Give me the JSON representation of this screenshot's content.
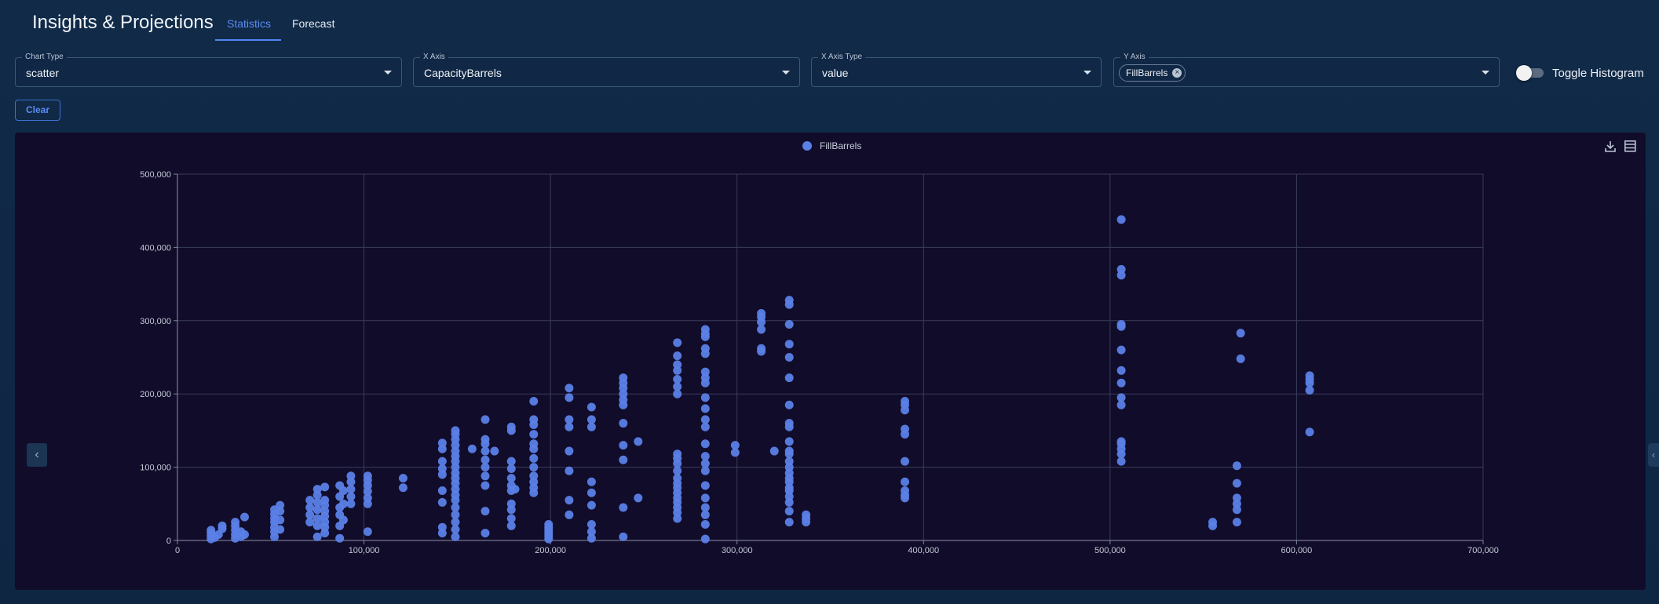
{
  "header": {
    "title": "Insights & Projections",
    "tabs": [
      {
        "label": "Statistics",
        "active": true
      },
      {
        "label": "Forecast",
        "active": false
      }
    ]
  },
  "controls": {
    "chart_type": {
      "legend": "Chart Type",
      "value": "scatter"
    },
    "x_axis": {
      "legend": "X Axis",
      "value": "CapacityBarrels"
    },
    "x_axis_type": {
      "legend": "X Axis Type",
      "value": "value"
    },
    "y_axis": {
      "legend": "Y Axis",
      "chips": [
        "FillBarrels"
      ]
    },
    "histogram_toggle": {
      "label": "Toggle Histogram",
      "on": false
    },
    "clear_label": "Clear"
  },
  "icons": {
    "download": "download-icon",
    "data_view": "data-view-icon",
    "chip_remove": "close-circle-icon",
    "nav_left": "chevron-left-icon",
    "nav_right": "chevron-right-icon"
  },
  "colors": {
    "accent": "#4f86f7",
    "point": "#5b7fe6",
    "chart_bg": "#110c2a"
  },
  "chart_data": {
    "type": "scatter",
    "xlim": [
      0,
      700000
    ],
    "ylim": [
      0,
      500000
    ],
    "x_ticks": [
      0,
      100000,
      200000,
      300000,
      400000,
      500000,
      600000,
      700000
    ],
    "y_ticks": [
      0,
      100000,
      200000,
      300000,
      400000,
      500000
    ],
    "x_tick_labels": [
      "0",
      "100,000",
      "200,000",
      "300,000",
      "400,000",
      "500,000",
      "600,000",
      "700,000"
    ],
    "y_tick_labels": [
      "0",
      "100,000",
      "200,000",
      "300,000",
      "400,000",
      "500,000"
    ],
    "grid": true,
    "legend_position": "top-center",
    "series": [
      {
        "name": "FillBarrels",
        "points": [
          [
            18000,
            2000
          ],
          [
            18000,
            6000
          ],
          [
            18000,
            10000
          ],
          [
            18000,
            14000
          ],
          [
            20000,
            4000
          ],
          [
            22000,
            8000
          ],
          [
            24000,
            16000
          ],
          [
            24000,
            20000
          ],
          [
            31000,
            3000
          ],
          [
            31000,
            8000
          ],
          [
            31000,
            14000
          ],
          [
            31000,
            20000
          ],
          [
            31000,
            25000
          ],
          [
            34000,
            5000
          ],
          [
            34000,
            12000
          ],
          [
            36000,
            32000
          ],
          [
            36000,
            8000
          ],
          [
            52000,
            5000
          ],
          [
            52000,
            12000
          ],
          [
            52000,
            18000
          ],
          [
            52000,
            25000
          ],
          [
            52000,
            30000
          ],
          [
            52000,
            36000
          ],
          [
            52000,
            42000
          ],
          [
            55000,
            15000
          ],
          [
            55000,
            28000
          ],
          [
            55000,
            40000
          ],
          [
            55000,
            48000
          ],
          [
            71000,
            25000
          ],
          [
            71000,
            35000
          ],
          [
            71000,
            45000
          ],
          [
            71000,
            55000
          ],
          [
            75000,
            5000
          ],
          [
            75000,
            20000
          ],
          [
            75000,
            30000
          ],
          [
            75000,
            42000
          ],
          [
            75000,
            52000
          ],
          [
            75000,
            62000
          ],
          [
            75000,
            70000
          ],
          [
            79000,
            10000
          ],
          [
            79000,
            18000
          ],
          [
            79000,
            25000
          ],
          [
            79000,
            33000
          ],
          [
            79000,
            40000
          ],
          [
            79000,
            48000
          ],
          [
            79000,
            55000
          ],
          [
            79000,
            73000
          ],
          [
            87000,
            3000
          ],
          [
            87000,
            20000
          ],
          [
            87000,
            35000
          ],
          [
            87000,
            45000
          ],
          [
            87000,
            60000
          ],
          [
            87000,
            75000
          ],
          [
            89000,
            28000
          ],
          [
            89000,
            50000
          ],
          [
            89000,
            68000
          ],
          [
            93000,
            50000
          ],
          [
            93000,
            60000
          ],
          [
            93000,
            70000
          ],
          [
            93000,
            80000
          ],
          [
            93000,
            88000
          ],
          [
            102000,
            12000
          ],
          [
            102000,
            50000
          ],
          [
            102000,
            58000
          ],
          [
            102000,
            67000
          ],
          [
            102000,
            75000
          ],
          [
            102000,
            82000
          ],
          [
            102000,
            88000
          ],
          [
            121000,
            72000
          ],
          [
            121000,
            85000
          ],
          [
            142000,
            10000
          ],
          [
            142000,
            18000
          ],
          [
            142000,
            52000
          ],
          [
            142000,
            68000
          ],
          [
            142000,
            90000
          ],
          [
            142000,
            98000
          ],
          [
            142000,
            108000
          ],
          [
            142000,
            125000
          ],
          [
            142000,
            133000
          ],
          [
            149000,
            5000
          ],
          [
            149000,
            15000
          ],
          [
            149000,
            25000
          ],
          [
            149000,
            35000
          ],
          [
            149000,
            45000
          ],
          [
            149000,
            55000
          ],
          [
            149000,
            62000
          ],
          [
            149000,
            70000
          ],
          [
            149000,
            78000
          ],
          [
            149000,
            85000
          ],
          [
            149000,
            92000
          ],
          [
            149000,
            100000
          ],
          [
            149000,
            108000
          ],
          [
            149000,
            115000
          ],
          [
            149000,
            122000
          ],
          [
            149000,
            130000
          ],
          [
            149000,
            138000
          ],
          [
            149000,
            145000
          ],
          [
            149000,
            150000
          ],
          [
            158000,
            125000
          ],
          [
            165000,
            10000
          ],
          [
            165000,
            40000
          ],
          [
            165000,
            75000
          ],
          [
            165000,
            88000
          ],
          [
            165000,
            100000
          ],
          [
            165000,
            110000
          ],
          [
            165000,
            122000
          ],
          [
            165000,
            132000
          ],
          [
            165000,
            138000
          ],
          [
            165000,
            165000
          ],
          [
            170000,
            122000
          ],
          [
            179000,
            20000
          ],
          [
            179000,
            30000
          ],
          [
            179000,
            42000
          ],
          [
            179000,
            50000
          ],
          [
            179000,
            68000
          ],
          [
            179000,
            75000
          ],
          [
            179000,
            85000
          ],
          [
            179000,
            98000
          ],
          [
            179000,
            108000
          ],
          [
            179000,
            150000
          ],
          [
            179000,
            155000
          ],
          [
            181000,
            70000
          ],
          [
            191000,
            65000
          ],
          [
            191000,
            72000
          ],
          [
            191000,
            80000
          ],
          [
            191000,
            88000
          ],
          [
            191000,
            100000
          ],
          [
            191000,
            112000
          ],
          [
            191000,
            125000
          ],
          [
            191000,
            132000
          ],
          [
            191000,
            145000
          ],
          [
            191000,
            158000
          ],
          [
            191000,
            165000
          ],
          [
            191000,
            190000
          ],
          [
            199000,
            2000
          ],
          [
            199000,
            6000
          ],
          [
            199000,
            10000
          ],
          [
            199000,
            14000
          ],
          [
            199000,
            18000
          ],
          [
            199000,
            22000
          ],
          [
            210000,
            35000
          ],
          [
            210000,
            55000
          ],
          [
            210000,
            95000
          ],
          [
            210000,
            122000
          ],
          [
            210000,
            155000
          ],
          [
            210000,
            165000
          ],
          [
            210000,
            195000
          ],
          [
            210000,
            208000
          ],
          [
            222000,
            3000
          ],
          [
            222000,
            12000
          ],
          [
            222000,
            22000
          ],
          [
            222000,
            48000
          ],
          [
            222000,
            65000
          ],
          [
            222000,
            80000
          ],
          [
            222000,
            155000
          ],
          [
            222000,
            165000
          ],
          [
            222000,
            182000
          ],
          [
            239000,
            5000
          ],
          [
            239000,
            45000
          ],
          [
            239000,
            110000
          ],
          [
            239000,
            130000
          ],
          [
            239000,
            160000
          ],
          [
            239000,
            185000
          ],
          [
            239000,
            192000
          ],
          [
            239000,
            200000
          ],
          [
            239000,
            208000
          ],
          [
            239000,
            215000
          ],
          [
            239000,
            222000
          ],
          [
            247000,
            58000
          ],
          [
            247000,
            135000
          ],
          [
            268000,
            30000
          ],
          [
            268000,
            38000
          ],
          [
            268000,
            45000
          ],
          [
            268000,
            52000
          ],
          [
            268000,
            58000
          ],
          [
            268000,
            65000
          ],
          [
            268000,
            72000
          ],
          [
            268000,
            78000
          ],
          [
            268000,
            85000
          ],
          [
            268000,
            95000
          ],
          [
            268000,
            105000
          ],
          [
            268000,
            112000
          ],
          [
            268000,
            118000
          ],
          [
            268000,
            200000
          ],
          [
            268000,
            210000
          ],
          [
            268000,
            220000
          ],
          [
            268000,
            232000
          ],
          [
            268000,
            240000
          ],
          [
            268000,
            252000
          ],
          [
            268000,
            270000
          ],
          [
            283000,
            2000
          ],
          [
            283000,
            22000
          ],
          [
            283000,
            35000
          ],
          [
            283000,
            45000
          ],
          [
            283000,
            58000
          ],
          [
            283000,
            75000
          ],
          [
            283000,
            95000
          ],
          [
            283000,
            105000
          ],
          [
            283000,
            115000
          ],
          [
            283000,
            132000
          ],
          [
            283000,
            155000
          ],
          [
            283000,
            165000
          ],
          [
            283000,
            180000
          ],
          [
            283000,
            195000
          ],
          [
            283000,
            215000
          ],
          [
            283000,
            222000
          ],
          [
            283000,
            230000
          ],
          [
            283000,
            255000
          ],
          [
            283000,
            262000
          ],
          [
            283000,
            278000
          ],
          [
            283000,
            282000
          ],
          [
            283000,
            288000
          ],
          [
            299000,
            120000
          ],
          [
            299000,
            130000
          ],
          [
            313000,
            258000
          ],
          [
            313000,
            262000
          ],
          [
            313000,
            288000
          ],
          [
            313000,
            298000
          ],
          [
            313000,
            305000
          ],
          [
            313000,
            310000
          ],
          [
            320000,
            122000
          ],
          [
            328000,
            25000
          ],
          [
            328000,
            40000
          ],
          [
            328000,
            52000
          ],
          [
            328000,
            60000
          ],
          [
            328000,
            68000
          ],
          [
            328000,
            72000
          ],
          [
            328000,
            80000
          ],
          [
            328000,
            85000
          ],
          [
            328000,
            92000
          ],
          [
            328000,
            100000
          ],
          [
            328000,
            108000
          ],
          [
            328000,
            118000
          ],
          [
            328000,
            122000
          ],
          [
            328000,
            135000
          ],
          [
            328000,
            155000
          ],
          [
            328000,
            160000
          ],
          [
            328000,
            185000
          ],
          [
            328000,
            222000
          ],
          [
            328000,
            250000
          ],
          [
            328000,
            268000
          ],
          [
            328000,
            295000
          ],
          [
            328000,
            322000
          ],
          [
            328000,
            328000
          ],
          [
            337000,
            25000
          ],
          [
            337000,
            30000
          ],
          [
            337000,
            35000
          ],
          [
            390000,
            58000
          ],
          [
            390000,
            62000
          ],
          [
            390000,
            68000
          ],
          [
            390000,
            80000
          ],
          [
            390000,
            108000
          ],
          [
            390000,
            145000
          ],
          [
            390000,
            152000
          ],
          [
            390000,
            178000
          ],
          [
            390000,
            185000
          ],
          [
            390000,
            190000
          ],
          [
            506000,
            108000
          ],
          [
            506000,
            118000
          ],
          [
            506000,
            125000
          ],
          [
            506000,
            132000
          ],
          [
            506000,
            135000
          ],
          [
            506000,
            185000
          ],
          [
            506000,
            195000
          ],
          [
            506000,
            215000
          ],
          [
            506000,
            232000
          ],
          [
            506000,
            260000
          ],
          [
            506000,
            292000
          ],
          [
            506000,
            295000
          ],
          [
            506000,
            362000
          ],
          [
            506000,
            370000
          ],
          [
            506000,
            438000
          ],
          [
            555000,
            20000
          ],
          [
            555000,
            25000
          ],
          [
            568000,
            25000
          ],
          [
            568000,
            42000
          ],
          [
            568000,
            50000
          ],
          [
            568000,
            58000
          ],
          [
            568000,
            78000
          ],
          [
            568000,
            102000
          ],
          [
            570000,
            248000
          ],
          [
            570000,
            283000
          ],
          [
            607000,
            148000
          ],
          [
            607000,
            205000
          ],
          [
            607000,
            215000
          ],
          [
            607000,
            220000
          ],
          [
            607000,
            225000
          ]
        ]
      }
    ]
  }
}
